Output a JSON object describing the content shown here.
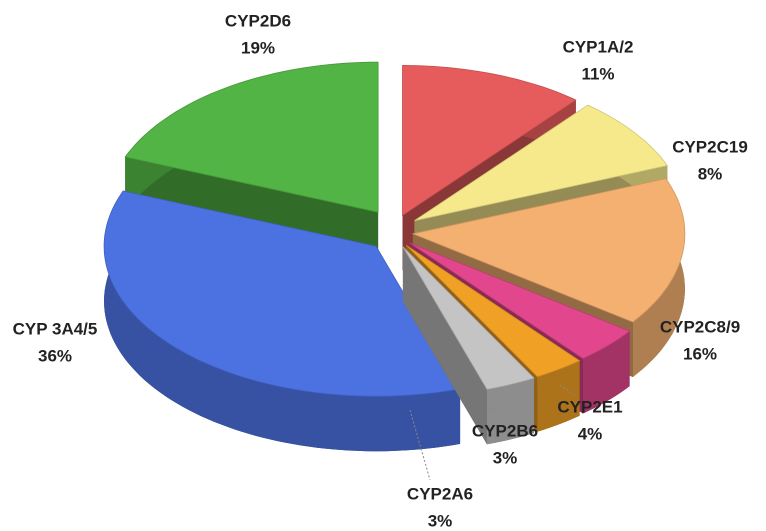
{
  "chart_data": {
    "type": "pie",
    "categories": [
      "CYP1A/2",
      "CYP2C19",
      "CYP2C8/9",
      "CYP2E1",
      "CYP2B6",
      "CYP2A6",
      "CYP 3A4/5",
      "CYP2D6"
    ],
    "values": [
      11,
      8,
      16,
      4,
      3,
      3,
      36,
      19
    ],
    "value_labels": [
      "11%",
      "8%",
      "16%",
      "4%",
      "3%",
      "3%",
      "36%",
      "19%"
    ],
    "colors": [
      "#e65c5c",
      "#f6e98c",
      "#f4b070",
      "#e2468c",
      "#f0a024",
      "#c4c4c4",
      "#4c72e2",
      "#52b444"
    ]
  }
}
